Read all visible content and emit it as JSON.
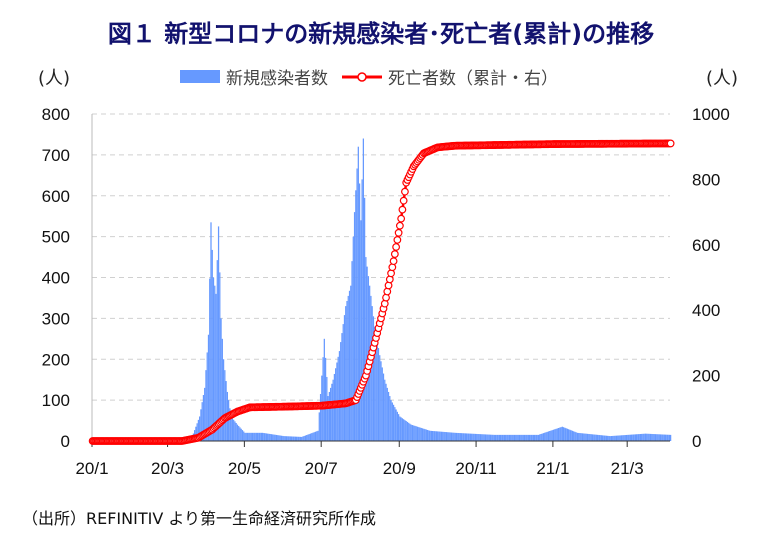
{
  "chart_data": {
    "type": "bar+line",
    "title": "図１ 新型コロナの新規感染者･死亡者(累計)の推移",
    "left_unit": "(人)",
    "right_unit": "(人)",
    "source": "（出所）REFINITIV より第一生命経済研究所作成",
    "x_start": "2020-01-01",
    "x_end": "2021-04-04",
    "x_ticks": [
      {
        "date": "2020-01-01",
        "label": "20/1"
      },
      {
        "date": "2020-03-01",
        "label": "20/3"
      },
      {
        "date": "2020-05-01",
        "label": "20/5"
      },
      {
        "date": "2020-07-01",
        "label": "20/7"
      },
      {
        "date": "2020-09-01",
        "label": "20/9"
      },
      {
        "date": "2020-11-01",
        "label": "20/11"
      },
      {
        "date": "2021-01-01",
        "label": "21/1"
      },
      {
        "date": "2021-03-01",
        "label": "21/3"
      }
    ],
    "ylim_left": [
      0,
      800
    ],
    "yticks_left": [
      0,
      100,
      200,
      300,
      400,
      500,
      600,
      700,
      800
    ],
    "ylim_right": [
      0,
      1000
    ],
    "yticks_right": [
      0,
      200,
      400,
      600,
      800,
      1000
    ],
    "grid": true,
    "legend_position": "top",
    "series": [
      {
        "name": "新規感染者数",
        "type": "bar",
        "axis": "left",
        "color": "#6699ff",
        "points": [
          [
            "2020-01-01",
            0
          ],
          [
            "2020-03-05",
            0
          ],
          [
            "2020-03-20",
            10
          ],
          [
            "2020-03-26",
            60
          ],
          [
            "2020-03-30",
            130
          ],
          [
            "2020-04-02",
            260
          ],
          [
            "2020-04-04",
            535
          ],
          [
            "2020-04-06",
            400
          ],
          [
            "2020-04-08",
            360
          ],
          [
            "2020-04-10",
            525
          ],
          [
            "2020-04-12",
            300
          ],
          [
            "2020-04-14",
            200
          ],
          [
            "2020-04-17",
            120
          ],
          [
            "2020-04-20",
            60
          ],
          [
            "2020-04-25",
            40
          ],
          [
            "2020-05-01",
            20
          ],
          [
            "2020-05-15",
            20
          ],
          [
            "2020-06-01",
            12
          ],
          [
            "2020-06-15",
            10
          ],
          [
            "2020-06-28",
            25
          ],
          [
            "2020-07-03",
            250
          ],
          [
            "2020-07-06",
            110
          ],
          [
            "2020-07-10",
            150
          ],
          [
            "2020-07-15",
            220
          ],
          [
            "2020-07-20",
            330
          ],
          [
            "2020-07-24",
            380
          ],
          [
            "2020-07-27",
            560
          ],
          [
            "2020-07-30",
            720
          ],
          [
            "2020-08-01",
            540
          ],
          [
            "2020-08-03",
            740
          ],
          [
            "2020-08-05",
            450
          ],
          [
            "2020-08-08",
            380
          ],
          [
            "2020-08-12",
            280
          ],
          [
            "2020-08-16",
            210
          ],
          [
            "2020-08-20",
            150
          ],
          [
            "2020-08-25",
            100
          ],
          [
            "2020-09-01",
            60
          ],
          [
            "2020-09-10",
            40
          ],
          [
            "2020-09-25",
            25
          ],
          [
            "2020-10-15",
            20
          ],
          [
            "2020-11-15",
            15
          ],
          [
            "2020-12-20",
            15
          ],
          [
            "2021-01-08",
            35
          ],
          [
            "2021-01-20",
            20
          ],
          [
            "2021-02-15",
            12
          ],
          [
            "2021-03-15",
            18
          ],
          [
            "2021-04-04",
            15
          ]
        ]
      },
      {
        "name": "死亡者数（累計・右）",
        "type": "line",
        "axis": "right",
        "color": "#ff0000",
        "points": [
          [
            "2020-01-01",
            0
          ],
          [
            "2020-03-12",
            0
          ],
          [
            "2020-03-25",
            10
          ],
          [
            "2020-04-05",
            35
          ],
          [
            "2020-04-15",
            70
          ],
          [
            "2020-04-25",
            90
          ],
          [
            "2020-05-05",
            103
          ],
          [
            "2020-06-01",
            105
          ],
          [
            "2020-07-01",
            108
          ],
          [
            "2020-07-20",
            115
          ],
          [
            "2020-07-28",
            125
          ],
          [
            "2020-08-05",
            200
          ],
          [
            "2020-08-12",
            300
          ],
          [
            "2020-08-20",
            420
          ],
          [
            "2020-08-27",
            550
          ],
          [
            "2020-09-02",
            680
          ],
          [
            "2020-09-06",
            790
          ],
          [
            "2020-09-12",
            840
          ],
          [
            "2020-09-20",
            880
          ],
          [
            "2020-10-01",
            898
          ],
          [
            "2020-10-15",
            903
          ],
          [
            "2020-11-15",
            905
          ],
          [
            "2021-01-01",
            908
          ],
          [
            "2021-04-04",
            910
          ]
        ]
      }
    ]
  }
}
